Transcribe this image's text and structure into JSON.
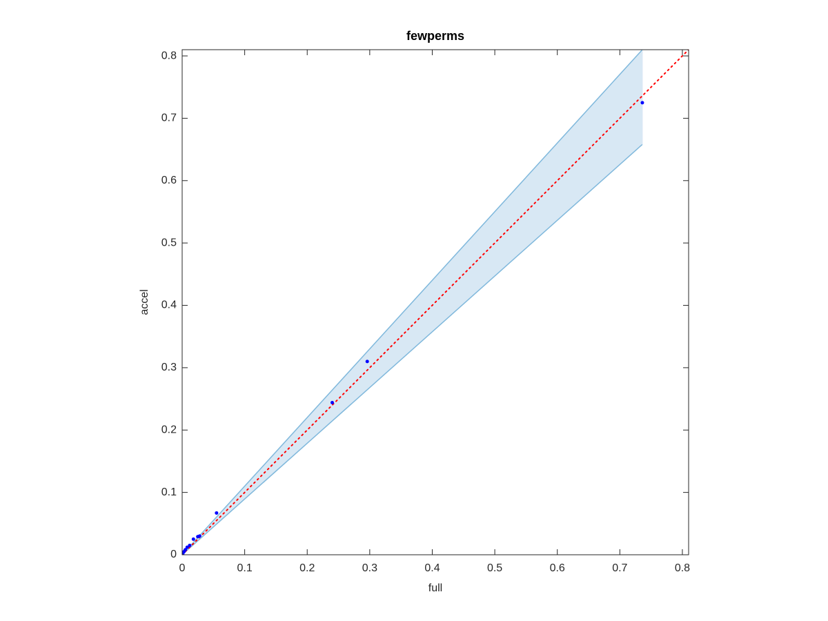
{
  "chart_data": {
    "type": "scatter",
    "title": "fewperms",
    "x_label": "full",
    "y_label": "accel",
    "xlim": [
      0,
      0.81
    ],
    "ylim": [
      0,
      0.81
    ],
    "xticks": [
      0,
      0.1,
      0.2,
      0.3,
      0.4,
      0.5,
      0.6,
      0.7,
      0.8
    ],
    "yticks": [
      0,
      0.1,
      0.2,
      0.3,
      0.4,
      0.5,
      0.6,
      0.7,
      0.8
    ],
    "grid": false,
    "band": {
      "x": [
        0,
        0.736
      ],
      "lower": [
        0,
        0.658
      ],
      "upper": [
        0,
        0.81
      ],
      "color": "#7fb8dc",
      "fill": "#d8e8f4"
    },
    "reference": {
      "x": [
        0,
        0.81
      ],
      "y": [
        0,
        0.81
      ],
      "color": "#ff0000"
    },
    "points": {
      "color": "#0000ff",
      "x": [
        0.736,
        0.296,
        0.24,
        0.055,
        0.028,
        0.025,
        0.018,
        0.012,
        0.008,
        0.005,
        0.003,
        0.001,
        0
      ],
      "y": [
        0.725,
        0.31,
        0.244,
        0.067,
        0.03,
        0.029,
        0.025,
        0.015,
        0.012,
        0.008,
        0.005,
        0.002,
        0
      ]
    }
  }
}
